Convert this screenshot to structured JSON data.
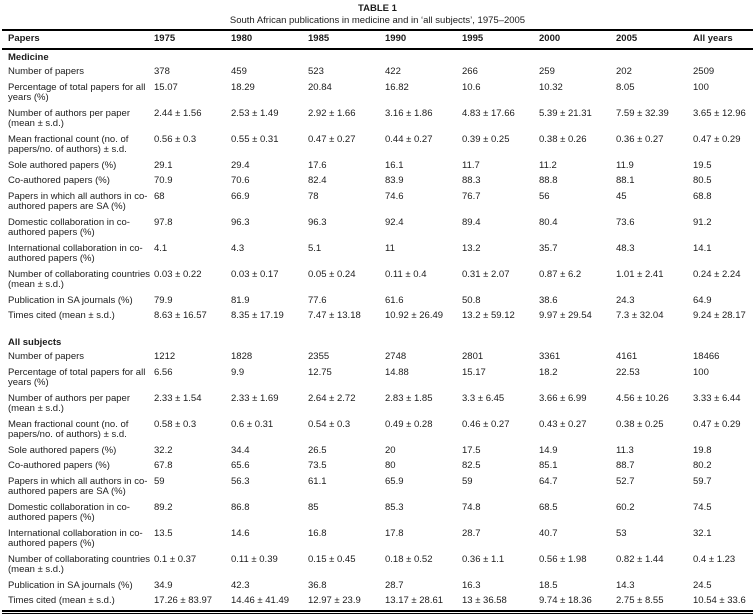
{
  "table": {
    "title": "TABLE 1",
    "subtitle": "South African publications in medicine and in ‘all subjects’, 1975–2005",
    "columns": [
      "Papers",
      "1975",
      "1980",
      "1985",
      "1990",
      "1995",
      "2000",
      "2005",
      "All years"
    ],
    "sections": [
      {
        "name": "Medicine",
        "rows": [
          {
            "label": "Number of papers",
            "values": [
              "378",
              "459",
              "523",
              "422",
              "266",
              "259",
              "202",
              "2509"
            ]
          },
          {
            "label": "Percentage of total papers for all years (%)",
            "values": [
              "15.07",
              "18.29",
              "20.84",
              "16.82",
              "10.6",
              "10.32",
              "8.05",
              "100"
            ]
          },
          {
            "label": "Number of authors per paper (mean ± s.d.)",
            "values": [
              "2.44 ± 1.56",
              "2.53 ± 1.49",
              "2.92 ± 1.66",
              "3.16 ± 1.86",
              "4.83 ± 17.66",
              "5.39 ± 21.31",
              "7.59 ± 32.39",
              "3.65 ± 12.96"
            ]
          },
          {
            "label": "Mean fractional count (no. of papers/no. of authors) ± s.d.",
            "values": [
              "0.56 ± 0.3",
              "0.55 ± 0.31",
              "0.47 ± 0.27",
              "0.44 ± 0.27",
              "0.39 ± 0.25",
              "0.38 ± 0.26",
              "0.36 ± 0.27",
              "0.47 ± 0.29"
            ]
          },
          {
            "label": "Sole authored papers (%)",
            "values": [
              "29.1",
              "29.4",
              "17.6",
              "16.1",
              "11.7",
              "11.2",
              "11.9",
              "19.5"
            ]
          },
          {
            "label": "Co-authored papers (%)",
            "values": [
              "70.9",
              "70.6",
              "82.4",
              "83.9",
              "88.3",
              "88.8",
              "88.1",
              "80.5"
            ]
          },
          {
            "label": "Papers in which all authors in co-authored papers are SA (%)",
            "values": [
              "68",
              "66.9",
              "78",
              "74.6",
              "76.7",
              "56",
              "45",
              "68.8"
            ]
          },
          {
            "label": "Domestic collaboration in co-authored papers (%)",
            "values": [
              "97.8",
              "96.3",
              "96.3",
              "92.4",
              "89.4",
              "80.4",
              "73.6",
              "91.2"
            ]
          },
          {
            "label": "International collaboration in co-authored papers (%)",
            "values": [
              "4.1",
              "4.3",
              "5.1",
              "11",
              "13.2",
              "35.7",
              "48.3",
              "14.1"
            ]
          },
          {
            "label": "Number of collaborating countries (mean ± s.d.)",
            "values": [
              "0.03 ± 0.22",
              "0.03 ± 0.17",
              "0.05 ± 0.24",
              "0.11 ± 0.4",
              "0.31 ± 2.07",
              "0.87 ± 6.2",
              "1.01 ± 2.41",
              "0.24 ± 2.24"
            ]
          },
          {
            "label": "Publication in SA journals (%)",
            "values": [
              "79.9",
              "81.9",
              "77.6",
              "61.6",
              "50.8",
              "38.6",
              "24.3",
              "64.9"
            ]
          },
          {
            "label": "Times cited (mean ± s.d.)",
            "values": [
              "8.63 ± 16.57",
              "8.35 ± 17.19",
              "7.47 ± 13.18",
              "10.92 ± 26.49",
              "13.2 ± 59.12",
              "9.97 ± 29.54",
              "7.3 ± 32.04",
              "9.24 ± 28.17"
            ]
          }
        ]
      },
      {
        "name": "All subjects",
        "rows": [
          {
            "label": "Number of papers",
            "values": [
              "1212",
              "1828",
              "2355",
              "2748",
              "2801",
              "3361",
              "4161",
              "18466"
            ]
          },
          {
            "label": "Percentage of total papers for all years (%)",
            "values": [
              "6.56",
              "9.9",
              "12.75",
              "14.88",
              "15.17",
              "18.2",
              "22.53",
              "100"
            ]
          },
          {
            "label": "Number of authors per paper (mean ± s.d.)",
            "values": [
              "2.33 ± 1.54",
              "2.33 ± 1.69",
              "2.64 ± 2.72",
              "2.83 ± 1.85",
              "3.3 ± 6.45",
              "3.66 ± 6.99",
              "4.56 ± 10.26",
              "3.33 ± 6.44"
            ]
          },
          {
            "label": "Mean fractional count (no. of papers/no. of authors) ± s.d.",
            "values": [
              "0.58 ± 0.3",
              "0.6 ± 0.31",
              "0.54 ± 0.3",
              "0.49 ± 0.28",
              "0.46 ± 0.27",
              "0.43 ± 0.27",
              "0.38 ± 0.25",
              "0.47 ± 0.29"
            ]
          },
          {
            "label": "Sole authored papers (%)",
            "values": [
              "32.2",
              "34.4",
              "26.5",
              "20",
              "17.5",
              "14.9",
              "11.3",
              "19.8"
            ]
          },
          {
            "label": "Co-authored papers (%)",
            "values": [
              "67.8",
              "65.6",
              "73.5",
              "80",
              "82.5",
              "85.1",
              "88.7",
              "80.2"
            ]
          },
          {
            "label": "Papers in which all authors in co-authored papers are SA (%)",
            "values": [
              "59",
              "56.3",
              "61.1",
              "65.9",
              "59",
              "64.7",
              "52.7",
              "59.7"
            ]
          },
          {
            "label": "Domestic collaboration in co-authored papers (%)",
            "values": [
              "89.2",
              "86.8",
              "85",
              "85.3",
              "74.8",
              "68.5",
              "60.2",
              "74.5"
            ]
          },
          {
            "label": "International collaboration in co-authored papers (%)",
            "values": [
              "13.5",
              "14.6",
              "16.8",
              "17.8",
              "28.7",
              "40.7",
              "53",
              "32.1"
            ]
          },
          {
            "label": "Number of collaborating countries (mean ± s.d.)",
            "values": [
              "0.1 ± 0.37",
              "0.11 ± 0.39",
              "0.15 ± 0.45",
              "0.18 ± 0.52",
              "0.36 ± 1.1",
              "0.56 ± 1.98",
              "0.82 ± 1.44",
              "0.4 ± 1.23"
            ]
          },
          {
            "label": "Publication in SA journals (%)",
            "values": [
              "34.9",
              "42.3",
              "36.8",
              "28.7",
              "16.3",
              "18.5",
              "14.3",
              "24.5"
            ]
          },
          {
            "label": "Times cited (mean ± s.d.)",
            "values": [
              "17.26 ± 83.97",
              "14.46 ± 41.49",
              "12.97 ± 23.9",
              "13.17 ± 28.61",
              "13 ± 36.58",
              "9.74 ± 18.36",
              "2.75 ± 8.55",
              "10.54 ± 33.6"
            ]
          }
        ]
      }
    ]
  }
}
